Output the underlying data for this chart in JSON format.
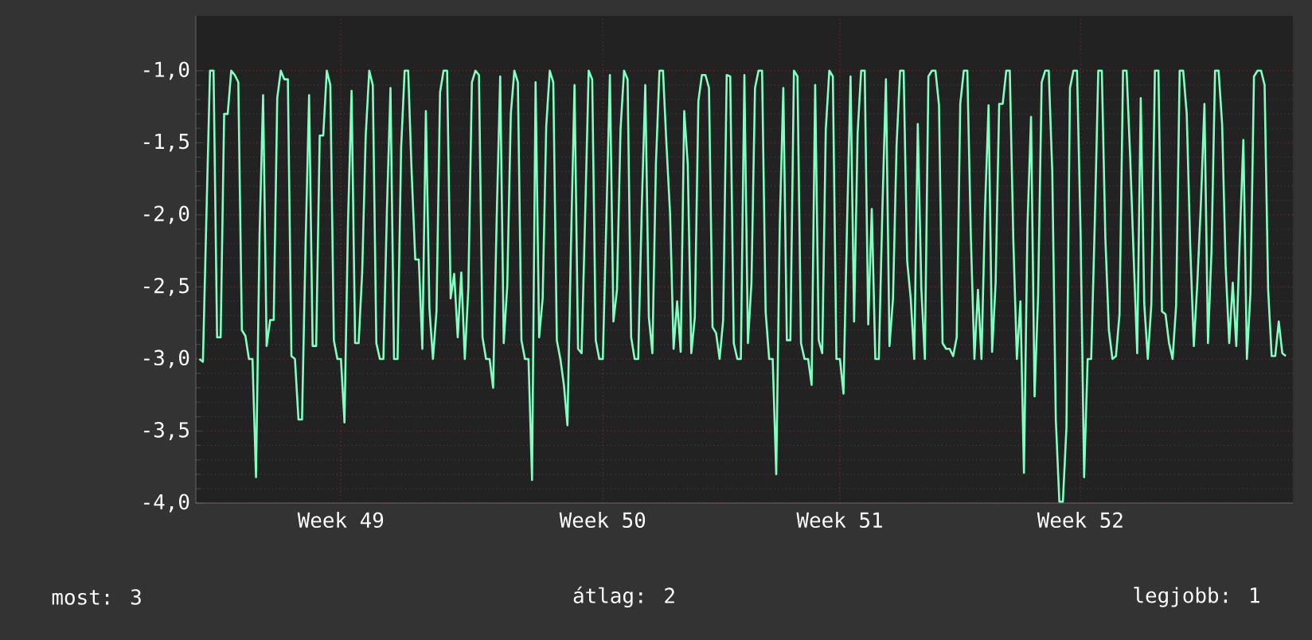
{
  "chart_data": {
    "type": "line",
    "categories": [
      null,
      null,
      null,
      null,
      null,
      null,
      null,
      null,
      null,
      null,
      null,
      null,
      null,
      null,
      null,
      null,
      null,
      null,
      null,
      null,
      null,
      null,
      null,
      null,
      null,
      null,
      null,
      null,
      null,
      null,
      null,
      null,
      null,
      null,
      null,
      null,
      null,
      null,
      null,
      null,
      "Week 49",
      null,
      null,
      null,
      null,
      null,
      null,
      null,
      null,
      null,
      null,
      null,
      null,
      null,
      null,
      null,
      null,
      null,
      null,
      null,
      null,
      null,
      null,
      null,
      null,
      null,
      null,
      null,
      null,
      null,
      null,
      null,
      null,
      null,
      null,
      null,
      null,
      null,
      null,
      null,
      null,
      null,
      null,
      null,
      null,
      null,
      null,
      null,
      null,
      null,
      null,
      null,
      null,
      null,
      null,
      null,
      null,
      null,
      null,
      null,
      null,
      null,
      null,
      null,
      null,
      null,
      null,
      null,
      null,
      null,
      null,
      null,
      null,
      null,
      "Week 50",
      null,
      null,
      null,
      null,
      null,
      null,
      null,
      null,
      null,
      null,
      null,
      null,
      null,
      null,
      null,
      null,
      null,
      null,
      null,
      null,
      null,
      null,
      null,
      null,
      null,
      null,
      null,
      null,
      null,
      null,
      null,
      null,
      null,
      null,
      null,
      null,
      null,
      null,
      null,
      null,
      null,
      null,
      null,
      null,
      null,
      null,
      null,
      null,
      null,
      null,
      null,
      null,
      null,
      null,
      null,
      null,
      null,
      null,
      null,
      null,
      null,
      null,
      null,
      null,
      null,
      null,
      "Week 51",
      null,
      null,
      null,
      null,
      null,
      null,
      null,
      null,
      null,
      null,
      null,
      null,
      null,
      null,
      null,
      null,
      null,
      null,
      null,
      null,
      null,
      null,
      null,
      null,
      null,
      null,
      null,
      null,
      null,
      null,
      null,
      null,
      null,
      null,
      null,
      null,
      null,
      null,
      null,
      null,
      null,
      null,
      null,
      null,
      null,
      null,
      null,
      null,
      null,
      null,
      null,
      null,
      null,
      null,
      null,
      null,
      null,
      null,
      null,
      null,
      null,
      null,
      null,
      null,
      null,
      null,
      null,
      "Week 52",
      null,
      null,
      null,
      null,
      null,
      null,
      null,
      null,
      null,
      null,
      null,
      null,
      null,
      null,
      null,
      null,
      null,
      null,
      null,
      null,
      null,
      null,
      null,
      null,
      null,
      null,
      null,
      null,
      null,
      null,
      null,
      null,
      null,
      null,
      null,
      null,
      null,
      null,
      null,
      null,
      null,
      null,
      null,
      null,
      null,
      null,
      null,
      null,
      null,
      null,
      null,
      null,
      null,
      null,
      null,
      null,
      null,
      null
    ],
    "ylim": [
      -4.0,
      -0.62
    ],
    "yticks": [
      {
        "value": -4.0,
        "label": "-4,0"
      },
      {
        "value": -3.5,
        "label": "-3,5"
      },
      {
        "value": -3.0,
        "label": "-3,0"
      },
      {
        "value": -2.5,
        "label": "-2,5"
      },
      {
        "value": -2.0,
        "label": "-2,0"
      },
      {
        "value": -1.5,
        "label": "-1,5"
      },
      {
        "value": -1.0,
        "label": "-1,0"
      }
    ],
    "grid": true,
    "annotations": [
      "most: 3",
      "átlag: 2",
      "legjobb: 1"
    ],
    "series": [
      {
        "color": "#80ffc0",
        "values": [
          -3.0,
          -3.02,
          -1.99,
          -1.0,
          -1.0,
          -2.85,
          -2.85,
          -1.3,
          -1.3,
          -1.0,
          -1.03,
          -1.08,
          -2.8,
          -2.84,
          -3.0,
          -3.0,
          -3.82,
          -2.14,
          -1.17,
          -2.91,
          -2.73,
          -2.73,
          -1.19,
          -1.0,
          -1.06,
          -1.06,
          -2.98,
          -3.0,
          -3.42,
          -3.42,
          -2.21,
          -1.17,
          -2.91,
          -2.91,
          -1.45,
          -1.45,
          -1.0,
          -1.1,
          -2.87,
          -3.0,
          -3.0,
          -3.44,
          -2.05,
          -1.14,
          -2.89,
          -2.89,
          -2.4,
          -1.45,
          -1.0,
          -1.1,
          -2.89,
          -3.0,
          -3.0,
          -1.96,
          -1.12,
          -3.0,
          -3.0,
          -1.54,
          -1.0,
          -1.0,
          -1.72,
          -2.31,
          -2.31,
          -2.93,
          -1.28,
          -2.65,
          -3.0,
          -2.67,
          -1.15,
          -1.0,
          -1.0,
          -2.58,
          -2.41,
          -2.85,
          -2.4,
          -3.0,
          -2.51,
          -1.08,
          -1.0,
          -1.03,
          -2.85,
          -3.0,
          -3.0,
          -3.2,
          -2.03,
          -1.04,
          -2.89,
          -2.49,
          -1.3,
          -1.0,
          -1.08,
          -2.87,
          -3.0,
          -3.0,
          -3.84,
          -1.08,
          -2.85,
          -2.58,
          -1.39,
          -1.0,
          -1.08,
          -2.87,
          -3.0,
          -3.18,
          -3.46,
          -2.21,
          -1.1,
          -2.93,
          -2.96,
          -2.01,
          -1.0,
          -1.06,
          -2.87,
          -3.0,
          -3.0,
          -2.03,
          -1.03,
          -2.74,
          -2.52,
          -1.41,
          -1.0,
          -1.06,
          -2.85,
          -3.0,
          -3.0,
          -1.96,
          -1.1,
          -2.71,
          -2.96,
          -1.65,
          -1.0,
          -1.0,
          -1.52,
          -1.99,
          -2.93,
          -2.6,
          -2.95,
          -1.28,
          -1.65,
          -2.96,
          -2.71,
          -1.21,
          -1.03,
          -1.03,
          -1.12,
          -2.78,
          -2.82,
          -3.0,
          -2.73,
          -1.03,
          -1.04,
          -2.89,
          -3.0,
          -3.0,
          -1.03,
          -2.89,
          -2.47,
          -1.12,
          -1.0,
          -1.0,
          -2.67,
          -3.0,
          -3.0,
          -3.8,
          -2.07,
          -1.12,
          -2.87,
          -2.87,
          -1.0,
          -1.04,
          -2.89,
          -3.0,
          -3.0,
          -3.18,
          -1.1,
          -2.87,
          -2.96,
          -1.41,
          -1.0,
          -1.04,
          -3.0,
          -3.0,
          -3.24,
          -2.07,
          -1.04,
          -2.74,
          -1.43,
          -1.0,
          -1.0,
          -2.76,
          -1.96,
          -3.0,
          -3.0,
          -1.96,
          -1.06,
          -2.91,
          -2.58,
          -1.52,
          -1.0,
          -1.0,
          -2.32,
          -2.58,
          -3.0,
          -1.37,
          -2.51,
          -3.0,
          -1.04,
          -1.0,
          -1.0,
          -1.24,
          -2.89,
          -2.93,
          -2.93,
          -2.98,
          -2.85,
          -1.23,
          -1.0,
          -1.0,
          -2.16,
          -3.0,
          -2.52,
          -3.0,
          -1.96,
          -1.24,
          -2.95,
          -2.47,
          -1.23,
          -1.23,
          -1.0,
          -1.0,
          -2.18,
          -3.0,
          -2.6,
          -3.79,
          -2.07,
          -1.32,
          -3.26,
          -2.56,
          -1.08,
          -1.0,
          -1.0,
          -1.7,
          -3.42,
          -3.99,
          -3.99,
          -3.48,
          -1.12,
          -1.0,
          -1.0,
          -2.12,
          -3.82,
          -3.0,
          -3.0,
          -2.07,
          -1.0,
          -1.0,
          -2.16,
          -2.8,
          -3.0,
          -2.98,
          -2.69,
          -1.0,
          -1.0,
          -1.59,
          -2.29,
          -2.96,
          -1.19,
          -2.62,
          -3.0,
          -2.62,
          -1.0,
          -1.0,
          -2.67,
          -2.69,
          -2.89,
          -3.0,
          -2.63,
          -1.0,
          -1.0,
          -1.3,
          -2.23,
          -2.91,
          -2.47,
          -1.92,
          -1.23,
          -2.89,
          -2.25,
          -1.0,
          -1.0,
          -1.37,
          -2.36,
          -2.89,
          -2.47,
          -2.91,
          -2.16,
          -1.48,
          -3.0,
          -2.54,
          -1.04,
          -1.0,
          -1.0,
          -1.1,
          -2.52,
          -2.98,
          -2.98,
          -2.74,
          -2.96,
          -2.98
        ]
      }
    ]
  }
}
